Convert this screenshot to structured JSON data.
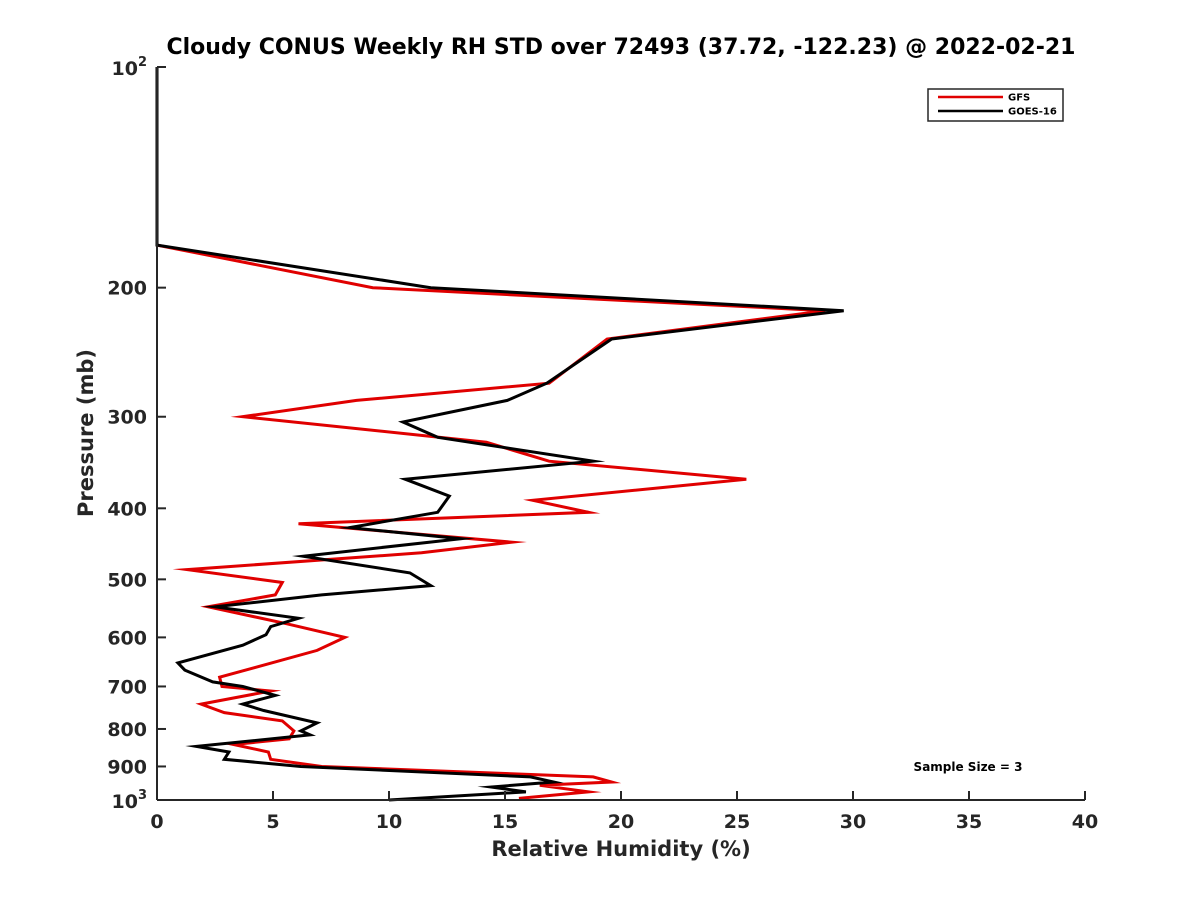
{
  "chart_data": {
    "type": "line",
    "title": "Cloudy CONUS Weekly RH STD over 72493 (37.72, -122.23) @ 2022-02-21",
    "xlabel": "Relative Humidity (%)",
    "ylabel": "Pressure (mb)",
    "xlim": [
      0,
      40
    ],
    "ylim": [
      100,
      1000
    ],
    "y_scale": "log",
    "y_reversed": true,
    "x_ticks": [
      "0",
      "5",
      "10",
      "15",
      "20",
      "25",
      "30",
      "35",
      "40"
    ],
    "y_ticks": [
      {
        "value": 200,
        "label": "200"
      },
      {
        "value": 300,
        "label": "300"
      },
      {
        "value": 400,
        "label": "400"
      },
      {
        "value": 500,
        "label": "500"
      },
      {
        "value": 600,
        "label": "600"
      },
      {
        "value": 700,
        "label": "700"
      },
      {
        "value": 800,
        "label": "800"
      },
      {
        "value": 900,
        "label": "900"
      }
    ],
    "y_end_labels": [
      {
        "value": 100,
        "base": "10",
        "exp": "2"
      },
      {
        "value": 1000,
        "base": "10",
        "exp": "3"
      }
    ],
    "grid": false,
    "legend_position": "top-right",
    "annotation": "Sample Size = 3",
    "series": [
      {
        "name": "GFS",
        "color": "#e00000",
        "points": [
          [
            0,
            100
          ],
          [
            0,
            175
          ],
          [
            9.3,
            200
          ],
          [
            28.8,
            215
          ],
          [
            19.4,
            235
          ],
          [
            16.9,
            270
          ],
          [
            8.6,
            285
          ],
          [
            3.7,
            300
          ],
          [
            14.2,
            325
          ],
          [
            16.9,
            345
          ],
          [
            25.4,
            365
          ],
          [
            16.2,
            390
          ],
          [
            18.6,
            405
          ],
          [
            6.1,
            420
          ],
          [
            15.3,
            445
          ],
          [
            11.4,
            460
          ],
          [
            1.3,
            485
          ],
          [
            5.4,
            505
          ],
          [
            5.1,
            525
          ],
          [
            2.2,
            545
          ],
          [
            5.6,
            575
          ],
          [
            8.1,
            600
          ],
          [
            6.9,
            625
          ],
          [
            4.2,
            660
          ],
          [
            2.7,
            680
          ],
          [
            2.8,
            700
          ],
          [
            4.9,
            710
          ],
          [
            1.9,
            740
          ],
          [
            2.9,
            760
          ],
          [
            5.4,
            780
          ],
          [
            5.9,
            805
          ],
          [
            5.7,
            825
          ],
          [
            3.3,
            840
          ],
          [
            4.8,
            860
          ],
          [
            4.9,
            880
          ],
          [
            7.1,
            900
          ],
          [
            18.8,
            930
          ],
          [
            19.6,
            945
          ],
          [
            16.5,
            955
          ],
          [
            18.6,
            975
          ],
          [
            15.6,
            995
          ]
        ]
      },
      {
        "name": "GOES-16",
        "color": "#000000",
        "points": [
          [
            0,
            100
          ],
          [
            0,
            175
          ],
          [
            11.8,
            200
          ],
          [
            29.6,
            215
          ],
          [
            19.6,
            235
          ],
          [
            16.8,
            270
          ],
          [
            15.1,
            285
          ],
          [
            10.6,
            305
          ],
          [
            12.1,
            320
          ],
          [
            18.8,
            345
          ],
          [
            10.7,
            365
          ],
          [
            12.6,
            385
          ],
          [
            12.1,
            405
          ],
          [
            8.3,
            425
          ],
          [
            13.1,
            440
          ],
          [
            6.3,
            465
          ],
          [
            10.9,
            490
          ],
          [
            11.8,
            510
          ],
          [
            7.1,
            525
          ],
          [
            2.5,
            545
          ],
          [
            6.1,
            565
          ],
          [
            4.9,
            580
          ],
          [
            4.7,
            595
          ],
          [
            3.7,
            615
          ],
          [
            0.9,
            650
          ],
          [
            1.2,
            665
          ],
          [
            2.4,
            690
          ],
          [
            3.7,
            700
          ],
          [
            5.1,
            720
          ],
          [
            3.7,
            740
          ],
          [
            4.6,
            755
          ],
          [
            6.9,
            785
          ],
          [
            6.2,
            805
          ],
          [
            6.6,
            815
          ],
          [
            1.7,
            845
          ],
          [
            3.1,
            860
          ],
          [
            2.9,
            880
          ],
          [
            6.2,
            900
          ],
          [
            16.1,
            930
          ],
          [
            17.1,
            945
          ],
          [
            14.4,
            960
          ],
          [
            15.9,
            975
          ],
          [
            10.0,
            1000
          ]
        ]
      }
    ]
  }
}
